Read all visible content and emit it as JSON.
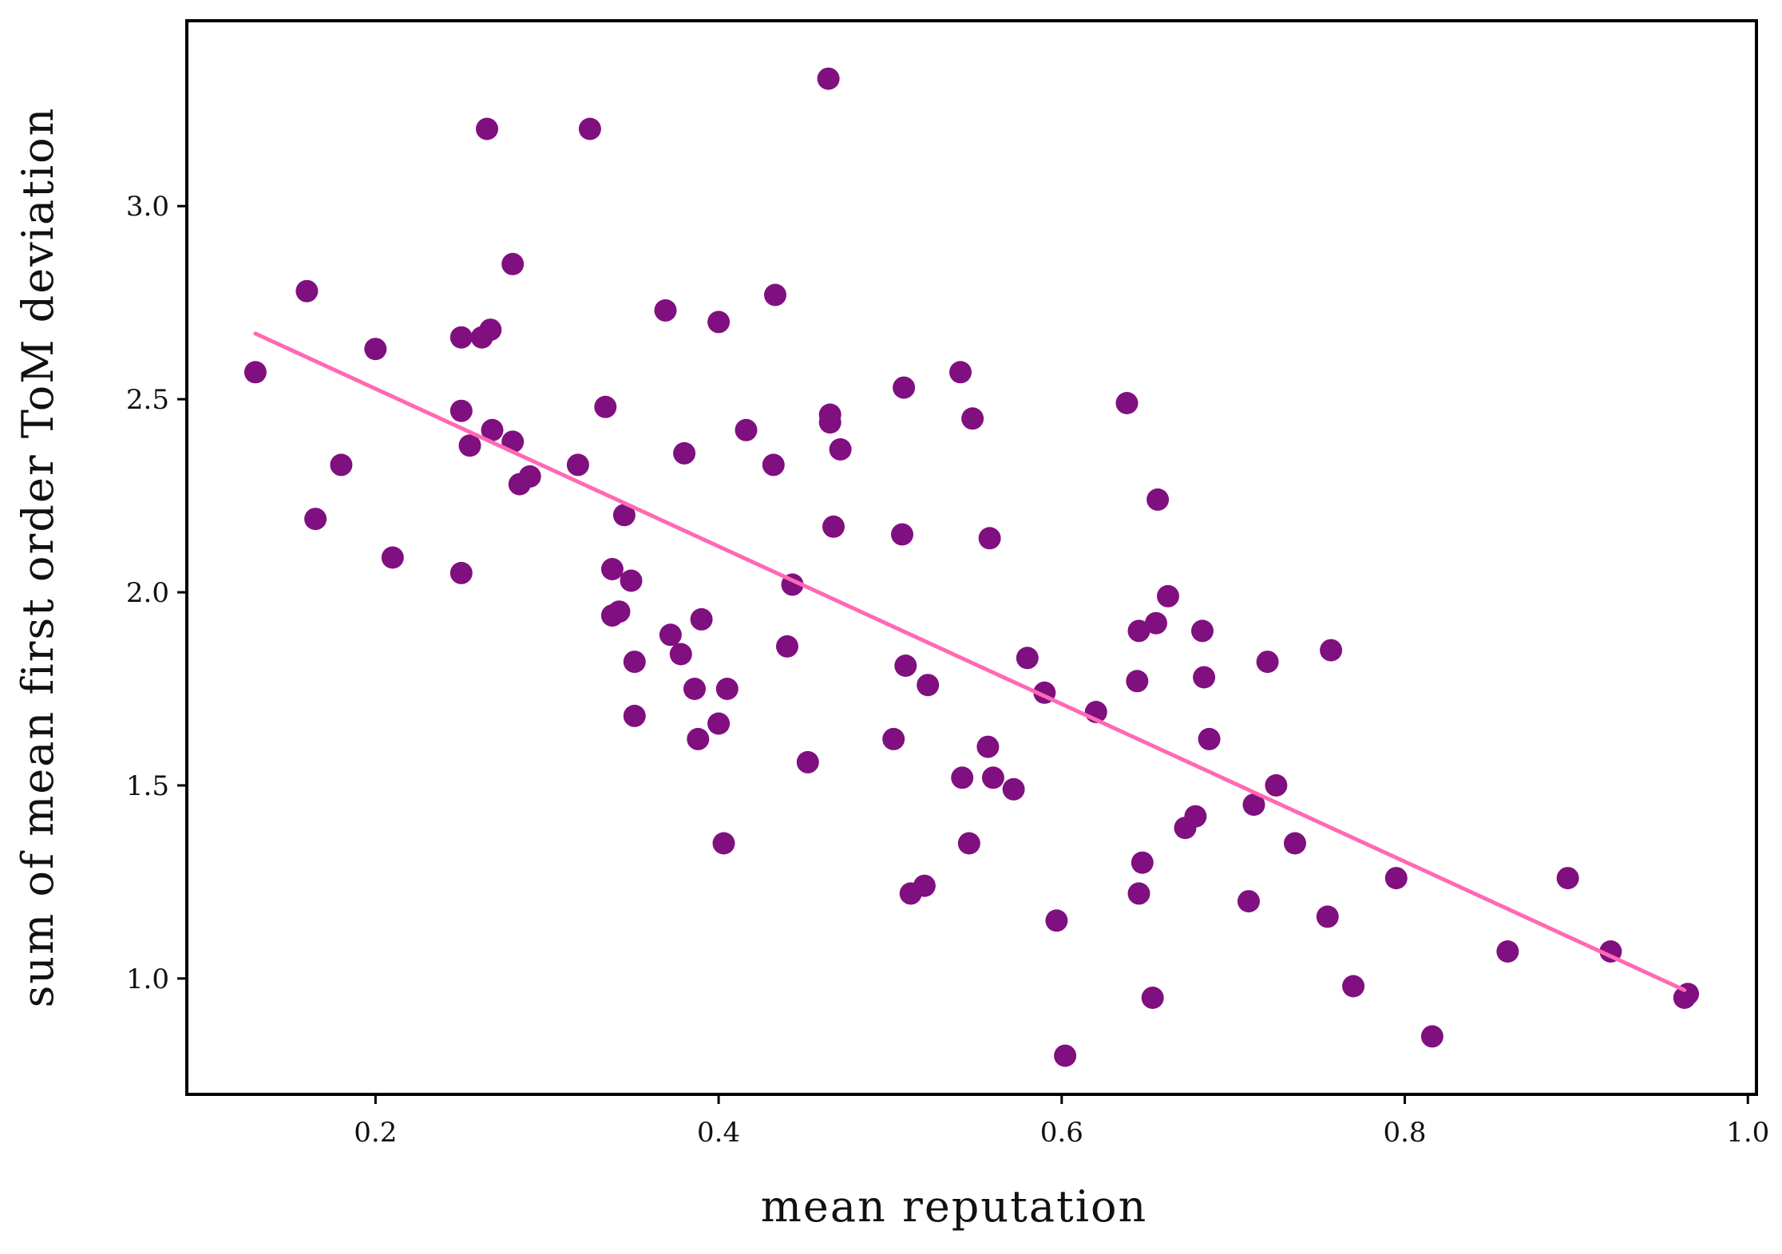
{
  "chart_data": {
    "type": "scatter",
    "xlabel": "mean reputation",
    "ylabel": "sum of mean first order ToM deviation",
    "xlim": [
      0.09,
      1.005
    ],
    "ylim": [
      0.7,
      3.48
    ],
    "xticks": [
      0.2,
      0.4,
      0.6,
      0.8,
      1.0
    ],
    "xtick_labels": [
      "0.2",
      "0.4",
      "0.6",
      "0.8",
      "1.0"
    ],
    "yticks": [
      1.0,
      1.5,
      2.0,
      2.5,
      3.0
    ],
    "ytick_labels": [
      "1.0",
      "1.5",
      "2.0",
      "2.5",
      "3.0"
    ],
    "grid": false,
    "colors": {
      "points": "#800f80",
      "trend_line": "#ff69b4",
      "axes": "#000000"
    },
    "series": [
      {
        "points": [
          [
            0.13,
            2.57
          ],
          [
            0.16,
            2.78
          ],
          [
            0.165,
            2.19
          ],
          [
            0.18,
            2.33
          ],
          [
            0.2,
            2.63
          ],
          [
            0.21,
            2.09
          ],
          [
            0.25,
            2.66
          ],
          [
            0.25,
            2.47
          ],
          [
            0.255,
            2.38
          ],
          [
            0.25,
            2.05
          ],
          [
            0.262,
            2.66
          ],
          [
            0.265,
            3.2
          ],
          [
            0.267,
            2.68
          ],
          [
            0.268,
            2.42
          ],
          [
            0.28,
            2.85
          ],
          [
            0.28,
            2.39
          ],
          [
            0.284,
            2.28
          ],
          [
            0.29,
            2.3
          ],
          [
            0.318,
            2.33
          ],
          [
            0.325,
            3.2
          ],
          [
            0.334,
            2.48
          ],
          [
            0.338,
            2.06
          ],
          [
            0.338,
            1.94
          ],
          [
            0.342,
            1.95
          ],
          [
            0.345,
            2.2
          ],
          [
            0.349,
            2.03
          ],
          [
            0.351,
            1.82
          ],
          [
            0.351,
            1.68
          ],
          [
            0.369,
            2.73
          ],
          [
            0.372,
            1.89
          ],
          [
            0.378,
            1.84
          ],
          [
            0.38,
            2.36
          ],
          [
            0.386,
            1.75
          ],
          [
            0.388,
            1.62
          ],
          [
            0.39,
            1.93
          ],
          [
            0.4,
            2.7
          ],
          [
            0.4,
            1.66
          ],
          [
            0.403,
            1.35
          ],
          [
            0.405,
            1.75
          ],
          [
            0.416,
            2.42
          ],
          [
            0.432,
            2.33
          ],
          [
            0.433,
            2.77
          ],
          [
            0.44,
            1.86
          ],
          [
            0.443,
            2.02
          ],
          [
            0.452,
            1.56
          ],
          [
            0.464,
            3.33
          ],
          [
            0.465,
            2.46
          ],
          [
            0.465,
            2.44
          ],
          [
            0.467,
            2.17
          ],
          [
            0.471,
            2.37
          ],
          [
            0.502,
            1.62
          ],
          [
            0.507,
            2.15
          ],
          [
            0.508,
            2.53
          ],
          [
            0.509,
            1.81
          ],
          [
            0.512,
            1.22
          ],
          [
            0.52,
            1.24
          ],
          [
            0.522,
            1.76
          ],
          [
            0.541,
            2.57
          ],
          [
            0.542,
            1.52
          ],
          [
            0.546,
            1.35
          ],
          [
            0.548,
            2.45
          ],
          [
            0.557,
            1.6
          ],
          [
            0.558,
            2.14
          ],
          [
            0.56,
            1.52
          ],
          [
            0.572,
            1.49
          ],
          [
            0.58,
            1.83
          ],
          [
            0.59,
            1.74
          ],
          [
            0.597,
            1.15
          ],
          [
            0.602,
            0.8
          ],
          [
            0.62,
            1.69
          ],
          [
            0.638,
            2.49
          ],
          [
            0.644,
            1.77
          ],
          [
            0.645,
            1.9
          ],
          [
            0.645,
            1.22
          ],
          [
            0.647,
            1.3
          ],
          [
            0.653,
            0.95
          ],
          [
            0.655,
            1.92
          ],
          [
            0.656,
            2.24
          ],
          [
            0.662,
            1.99
          ],
          [
            0.672,
            1.39
          ],
          [
            0.678,
            1.42
          ],
          [
            0.682,
            1.9
          ],
          [
            0.683,
            1.78
          ],
          [
            0.686,
            1.62
          ],
          [
            0.709,
            1.2
          ],
          [
            0.712,
            1.45
          ],
          [
            0.72,
            1.82
          ],
          [
            0.725,
            1.5
          ],
          [
            0.736,
            1.35
          ],
          [
            0.755,
            1.16
          ],
          [
            0.757,
            1.85
          ],
          [
            0.77,
            0.98
          ],
          [
            0.795,
            1.26
          ],
          [
            0.816,
            0.85
          ],
          [
            0.86,
            1.07
          ],
          [
            0.895,
            1.26
          ],
          [
            0.92,
            1.07
          ],
          [
            0.963,
            0.95
          ],
          [
            0.965,
            0.96
          ]
        ]
      }
    ],
    "trend_line": {
      "points": [
        [
          0.13,
          2.67
        ],
        [
          0.963,
          0.97
        ]
      ]
    }
  }
}
